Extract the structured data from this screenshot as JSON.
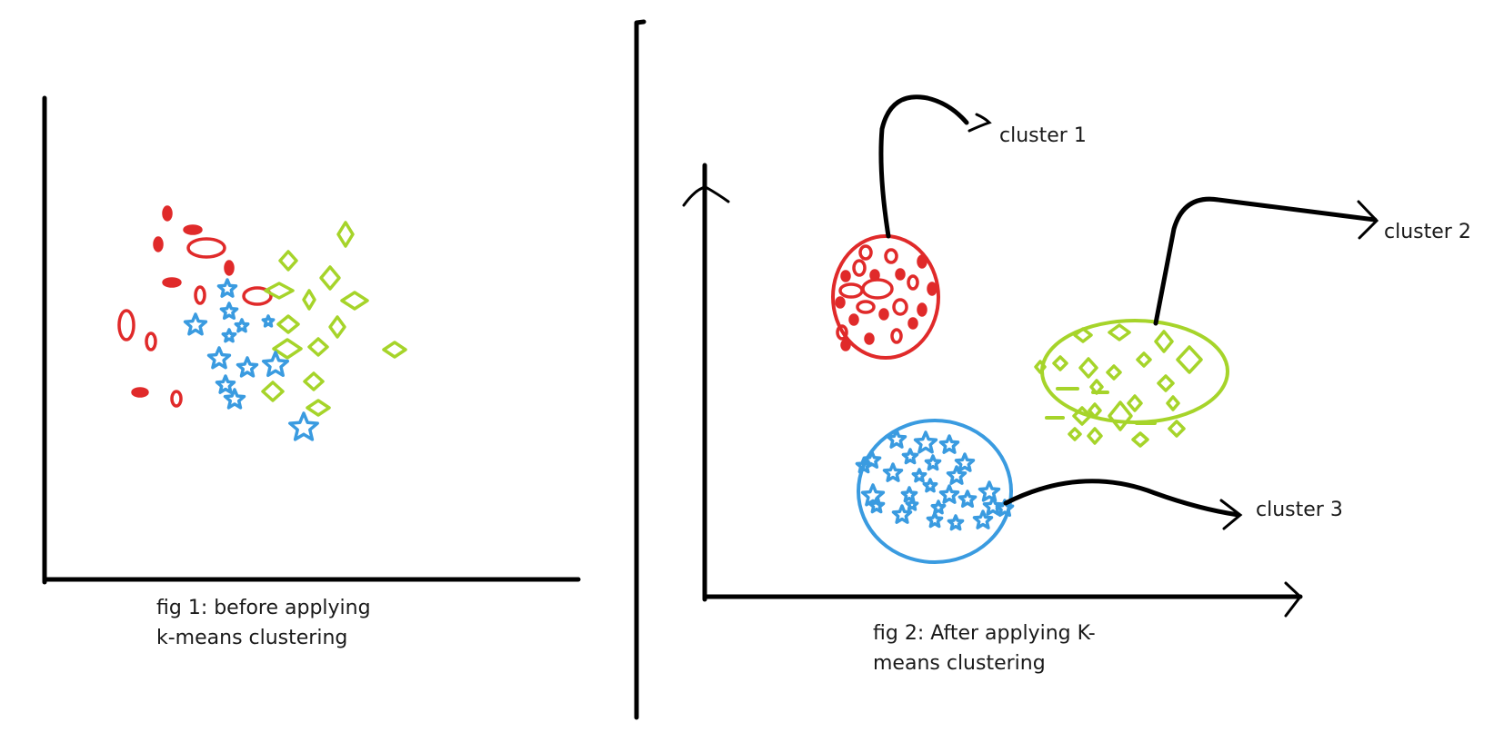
{
  "colors": {
    "cluster_1": "#e02a2a",
    "cluster_2": "#a6d42a",
    "cluster_3": "#3a9be0",
    "ink": "#000000",
    "background": "#ffffff"
  },
  "marker_shapes": {
    "cluster_1": "ellipse",
    "cluster_2": "diamond",
    "cluster_3": "star"
  },
  "figure_1": {
    "caption_line1": "fig 1: before applying",
    "caption_line2": "k-means clustering"
  },
  "figure_2": {
    "caption_line1": "fig 2:  After applying K-",
    "caption_line2": "means clustering",
    "cluster_labels": [
      "cluster 1",
      "cluster 2",
      "cluster 3"
    ]
  }
}
